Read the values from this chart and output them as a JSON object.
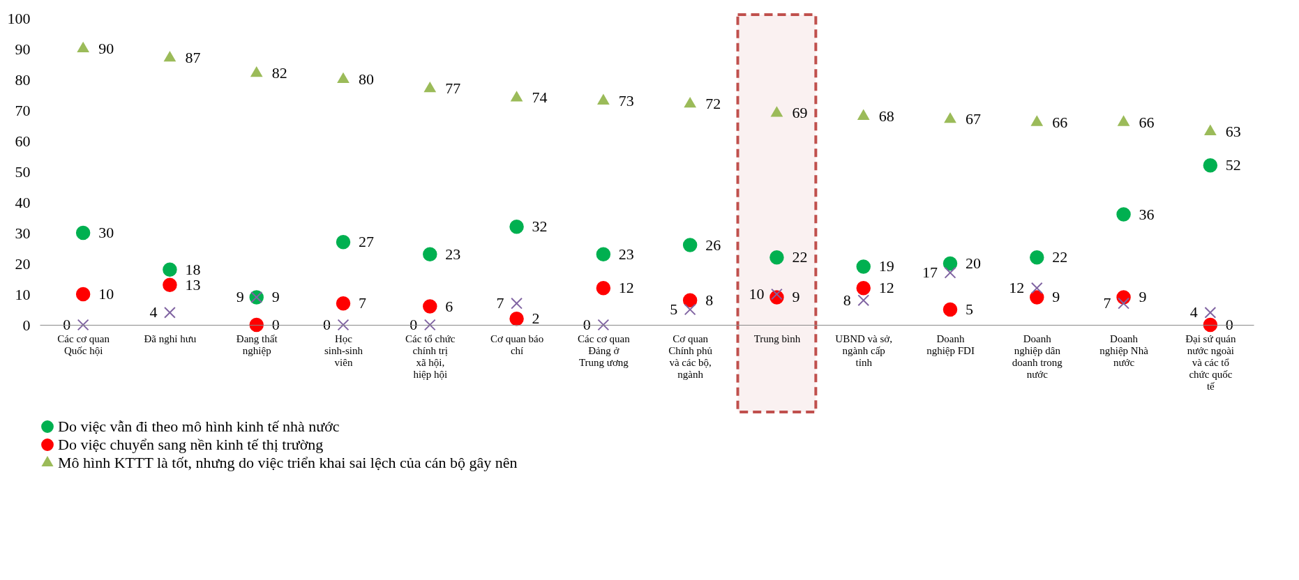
{
  "chart_data": {
    "type": "scatter",
    "categories": [
      "Các cơ quan Quốc hội",
      "Đã nghỉ hưu",
      "Đang thất nghiệp",
      "Học sinh-sinh viên",
      "Các tổ chức chính trị xã hội, hiệp hội",
      "Cơ quan báo chí",
      "Các cơ quan Đảng ở Trung ương",
      "Cơ quan Chính phủ và các bộ, ngành",
      "Trung bình",
      "UBND và sở, ngành cấp tỉnh",
      "Doanh nghiệp FDI",
      "Doanh nghiệp dân doanh trong nước",
      "Doanh nghiệp Nhà nước",
      "Đại sứ quán nước ngoài và các tổ chức quốc tế"
    ],
    "series": [
      {
        "name": "Do việc vẫn đi theo mô hình kinh tế nhà nước",
        "color": "#00b050",
        "marker": "circle",
        "values": [
          30,
          18,
          9,
          27,
          23,
          32,
          23,
          26,
          22,
          19,
          20,
          22,
          36,
          52
        ]
      },
      {
        "name": "Do việc chuyển sang nền kinh tế thị trường",
        "color": "#ff0000",
        "marker": "circle",
        "values": [
          10,
          13,
          0,
          7,
          6,
          2,
          12,
          8,
          9,
          12,
          5,
          9,
          9,
          0
        ]
      },
      {
        "name": "Mô hình KTTT là tốt, nhưng do việc triển khai sai lệch của cán bộ gây nên",
        "color": "#9bbb59",
        "marker": "triangle",
        "values": [
          90,
          87,
          82,
          80,
          77,
          74,
          73,
          72,
          69,
          68,
          67,
          66,
          66,
          63
        ]
      },
      {
        "color": "#8064a2",
        "marker": "cross",
        "values": [
          0,
          4,
          9,
          0,
          0,
          7,
          0,
          5,
          10,
          8,
          17,
          12,
          7,
          4
        ]
      }
    ],
    "ylim": [
      0,
      100
    ],
    "yticks": [
      0,
      10,
      20,
      30,
      40,
      50,
      60,
      70,
      80,
      90,
      100
    ],
    "data_labels": true,
    "legend": "bottom",
    "grid": false,
    "bands": [
      {
        "axis": "x",
        "from": "Trung bình",
        "to": "Trung bình",
        "color": "#c0504d"
      }
    ]
  }
}
